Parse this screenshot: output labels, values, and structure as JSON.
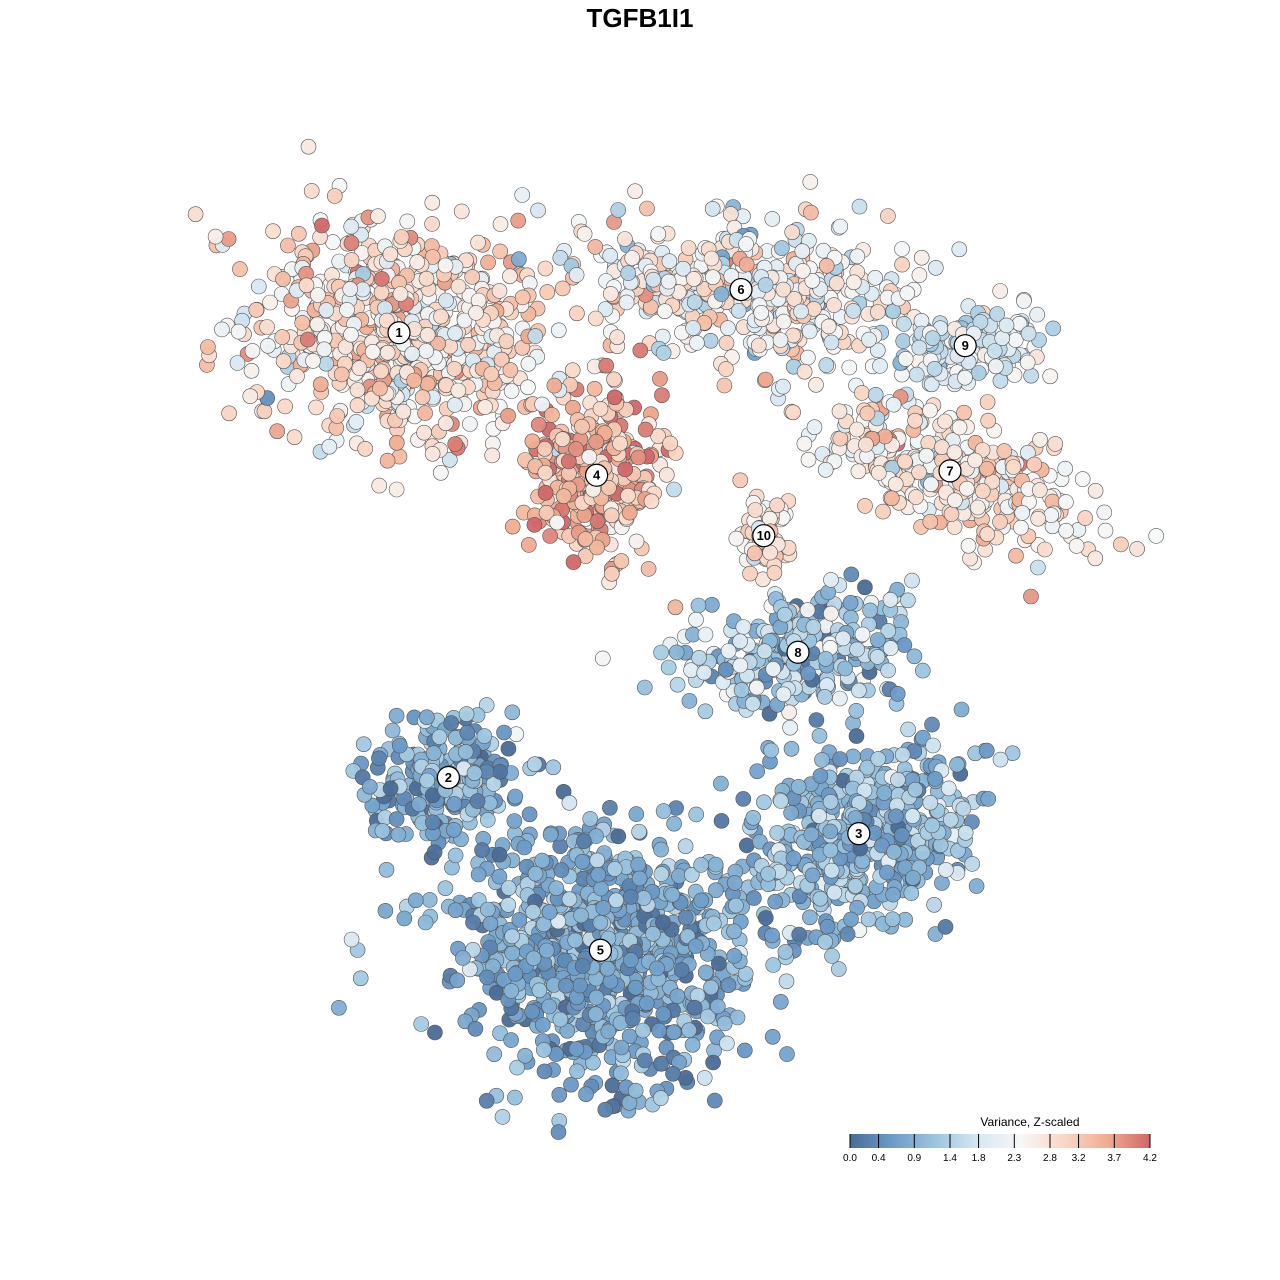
{
  "chart_data": {
    "type": "scatter",
    "title": "TGFB1I1",
    "xlabel": "",
    "ylabel": "",
    "grid": false,
    "axes_visible": false,
    "color_scale": {
      "title": "Variance, Z-scaled",
      "min": 0.0,
      "max": 4.2,
      "ticks": [
        "0.0",
        "0.4",
        "0.9",
        "1.4",
        "1.8",
        "2.3",
        "2.8",
        "3.2",
        "3.7",
        "4.2"
      ],
      "colors": [
        "#4a6b96",
        "#6d9cc9",
        "#9cc5df",
        "#d8e8f2",
        "#f7f7f7",
        "#f9d6c5",
        "#f0ad92",
        "#d06768"
      ],
      "placement": "bottom-right"
    },
    "clusters": [
      {
        "label": "1",
        "x": -6.5,
        "y": 6.0,
        "sx": 3.2,
        "sy": 2.1,
        "rot": -0.15,
        "n": 700,
        "mean": 2.75,
        "sd": 0.55
      },
      {
        "label": "2",
        "x": -5.2,
        "y": -4.3,
        "sx": 1.6,
        "sy": 1.2,
        "rot": 0.2,
        "n": 260,
        "mean": 0.85,
        "sd": 0.45
      },
      {
        "label": "3",
        "x": 5.6,
        "y": -5.6,
        "sx": 2.5,
        "sy": 1.6,
        "rot": 0.45,
        "n": 520,
        "mean": 1.0,
        "sd": 0.45
      },
      {
        "label": "4",
        "x": -1.3,
        "y": 2.7,
        "sx": 1.4,
        "sy": 1.6,
        "rot": 0.0,
        "n": 360,
        "mean": 3.35,
        "sd": 0.55
      },
      {
        "label": "5",
        "x": -1.2,
        "y": -8.3,
        "sx": 3.0,
        "sy": 2.2,
        "rot": -0.1,
        "n": 950,
        "mean": 0.75,
        "sd": 0.4
      },
      {
        "label": "6",
        "x": 2.5,
        "y": 7.0,
        "sx": 3.5,
        "sy": 1.3,
        "rot": -0.1,
        "n": 440,
        "mean": 2.45,
        "sd": 0.6
      },
      {
        "label": "7",
        "x": 8.0,
        "y": 2.8,
        "sx": 3.2,
        "sy": 1.0,
        "rot": -0.35,
        "n": 340,
        "mean": 2.7,
        "sd": 0.5
      },
      {
        "label": "8",
        "x": 4.0,
        "y": -1.4,
        "sx": 2.4,
        "sy": 1.1,
        "rot": 0.15,
        "n": 300,
        "mean": 1.25,
        "sd": 0.7
      },
      {
        "label": "9",
        "x": 8.4,
        "y": 5.7,
        "sx": 1.8,
        "sy": 0.8,
        "rot": 0.1,
        "n": 150,
        "mean": 1.9,
        "sd": 0.45
      },
      {
        "label": "10",
        "x": 3.1,
        "y": 1.3,
        "sx": 0.6,
        "sy": 0.8,
        "rot": 0.0,
        "n": 70,
        "mean": 2.75,
        "sd": 0.4
      }
    ],
    "x_range": [
      -12,
      13
    ],
    "y_range": [
      -12,
      10
    ]
  }
}
